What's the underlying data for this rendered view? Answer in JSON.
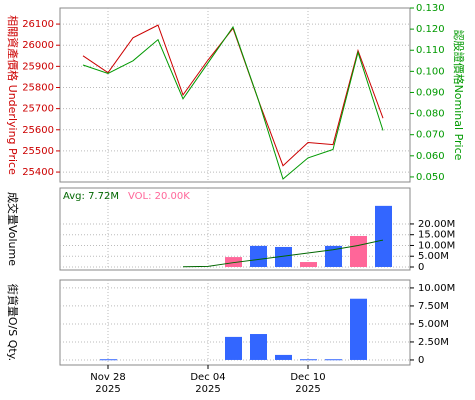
{
  "chart_data": [
    {
      "type": "line",
      "ylabel": "相關資產價格 Underlying Price",
      "y2label": "認股證價格Nominal Price",
      "ylim": [
        25353,
        26176
      ],
      "yticks": [
        25400,
        25500,
        25600,
        25700,
        25800,
        25900,
        26000,
        26100
      ],
      "y2lim": [
        0.0476,
        0.13
      ],
      "y2ticks": [
        {
          "value": 0.05,
          "label": "0.050"
        },
        {
          "value": 0.06,
          "label": "0.060"
        },
        {
          "value": 0.07,
          "label": "0.070"
        },
        {
          "value": 0.08,
          "label": "0.080"
        },
        {
          "value": 0.09,
          "label": "0.090"
        },
        {
          "value": 0.1,
          "label": "0.100"
        },
        {
          "value": 0.11,
          "label": "0.110"
        },
        {
          "value": 0.12,
          "label": "0.120"
        },
        {
          "value": 0.13,
          "label": "0.130"
        }
      ],
      "grid": true,
      "series": [
        {
          "name": "Underlying Price",
          "color": "#cc0000",
          "values": [
            25950,
            25870,
            26035,
            26095,
            25765,
            25930,
            26080,
            25745,
            25430,
            25540,
            25530,
            25975,
            25655
          ]
        },
        {
          "name": "Nominal Price",
          "color": "#009900",
          "axis": "y2",
          "values": [
            0.103,
            0.099,
            0.105,
            0.115,
            0.087,
            0.104,
            0.121,
            0.087,
            0.049,
            0.059,
            0.063,
            0.109,
            0.072
          ]
        }
      ]
    },
    {
      "type": "bar",
      "ylabel": "成交量Volume",
      "annotations": [
        "Avg: 7.72M",
        "VOL: 20.00K"
      ],
      "ylim": [
        -1.4,
        36.7
      ],
      "yticks": [
        0,
        {
          "value": 5,
          "label": "5.00M"
        },
        {
          "value": 10,
          "label": "10.00M"
        },
        {
          "value": 15,
          "label": "15.00M"
        },
        {
          "value": 20,
          "label": "20.00M"
        }
      ],
      "grid": true,
      "series": [
        {
          "name": "Volume",
          "colors": [
            null,
            null,
            null,
            null,
            null,
            null,
            "#ff6699",
            "#3366ff",
            "#3366ff",
            "#ff6699",
            "#3366ff",
            "#ff6699",
            "#3366ff"
          ],
          "values": [
            null,
            null,
            null,
            null,
            null,
            null,
            4.6,
            9.8,
            9.3,
            2.3,
            9.8,
            14.4,
            28.4
          ]
        },
        {
          "name": "Avg",
          "type": "line",
          "color": "#006600",
          "values": [
            null,
            null,
            null,
            null,
            0.1,
            0.3,
            2,
            3.5,
            5,
            6.5,
            8,
            10,
            12.5
          ]
        }
      ]
    },
    {
      "type": "bar",
      "ylabel": "街貨量O/S Qty.",
      "ylim": [
        -0.7,
        11.1
      ],
      "yticks": [
        0,
        {
          "value": 2.5,
          "label": "2.50M"
        },
        {
          "value": 5,
          "label": "5.00M"
        },
        {
          "value": 7.5,
          "label": "7.50M"
        },
        {
          "value": 10,
          "label": "10.00M"
        }
      ],
      "grid": true,
      "color": "#3366ff",
      "categories": [
        null,
        [
          "Nov 28",
          "2025"
        ],
        null,
        null,
        null,
        [
          "Dec 04",
          "2025"
        ],
        null,
        null,
        null,
        [
          "Dec 10",
          "2025"
        ],
        null,
        null,
        null
      ],
      "values": [
        null,
        0.1,
        null,
        null,
        null,
        null,
        3.2,
        3.6,
        0.7,
        0.1,
        0.1,
        8.5,
        null
      ]
    }
  ]
}
